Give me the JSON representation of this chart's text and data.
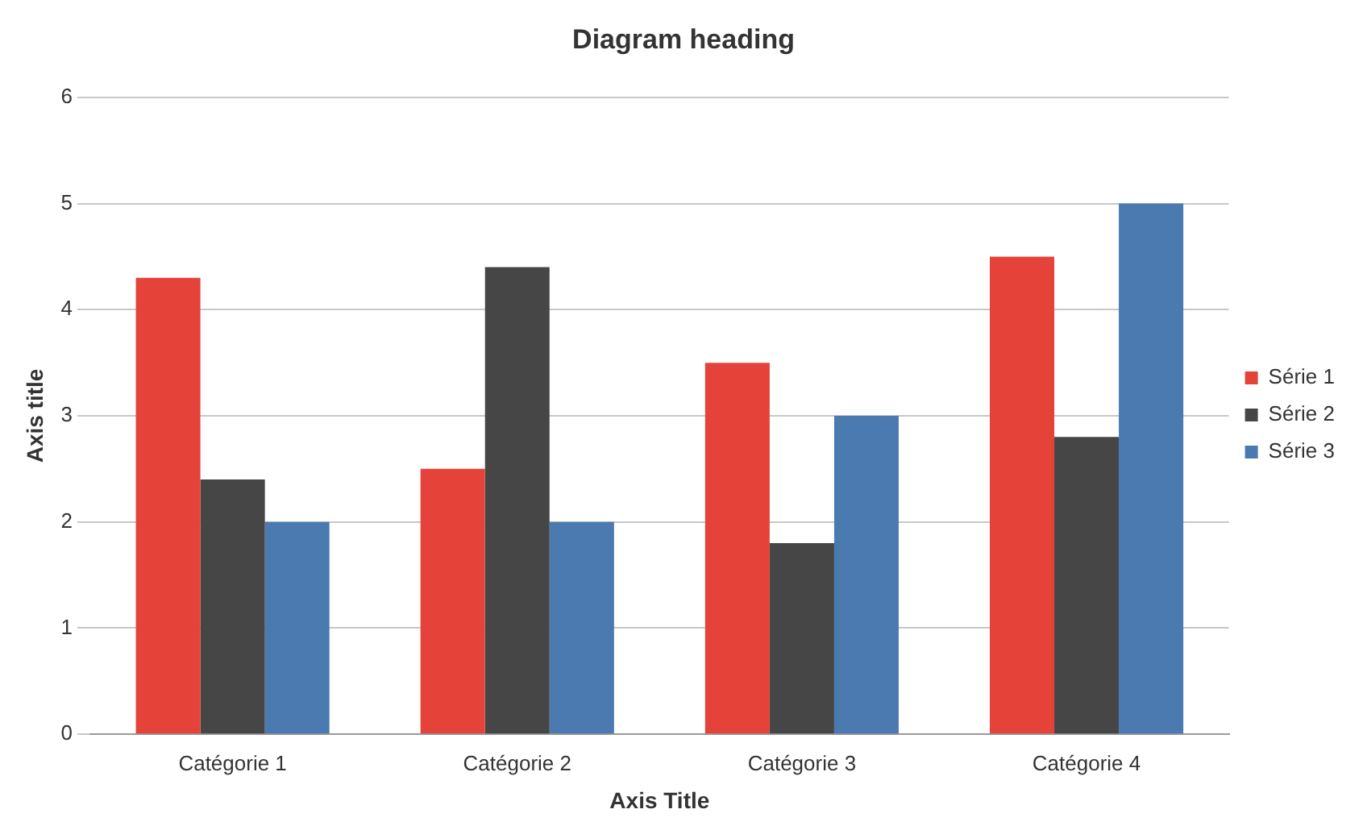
{
  "chart_data": {
    "type": "bar",
    "title": "Diagram heading",
    "xlabel": "Axis Title",
    "ylabel": "Axis title",
    "categories": [
      "Catégorie 1",
      "Catégorie 2",
      "Catégorie 3",
      "Catégorie 4"
    ],
    "series": [
      {
        "name": "Série 1",
        "color": "#e5423a",
        "values": [
          4.3,
          2.5,
          3.5,
          4.5
        ]
      },
      {
        "name": "Série 2",
        "color": "#464646",
        "values": [
          2.4,
          4.4,
          1.8,
          2.8
        ]
      },
      {
        "name": "Série 3",
        "color": "#4a7ab0",
        "values": [
          2,
          2,
          3,
          5
        ]
      }
    ],
    "ylim": [
      0,
      6
    ],
    "yticks": [
      0,
      1,
      2,
      3,
      4,
      5,
      6
    ],
    "grid": "y",
    "legend": "right"
  }
}
